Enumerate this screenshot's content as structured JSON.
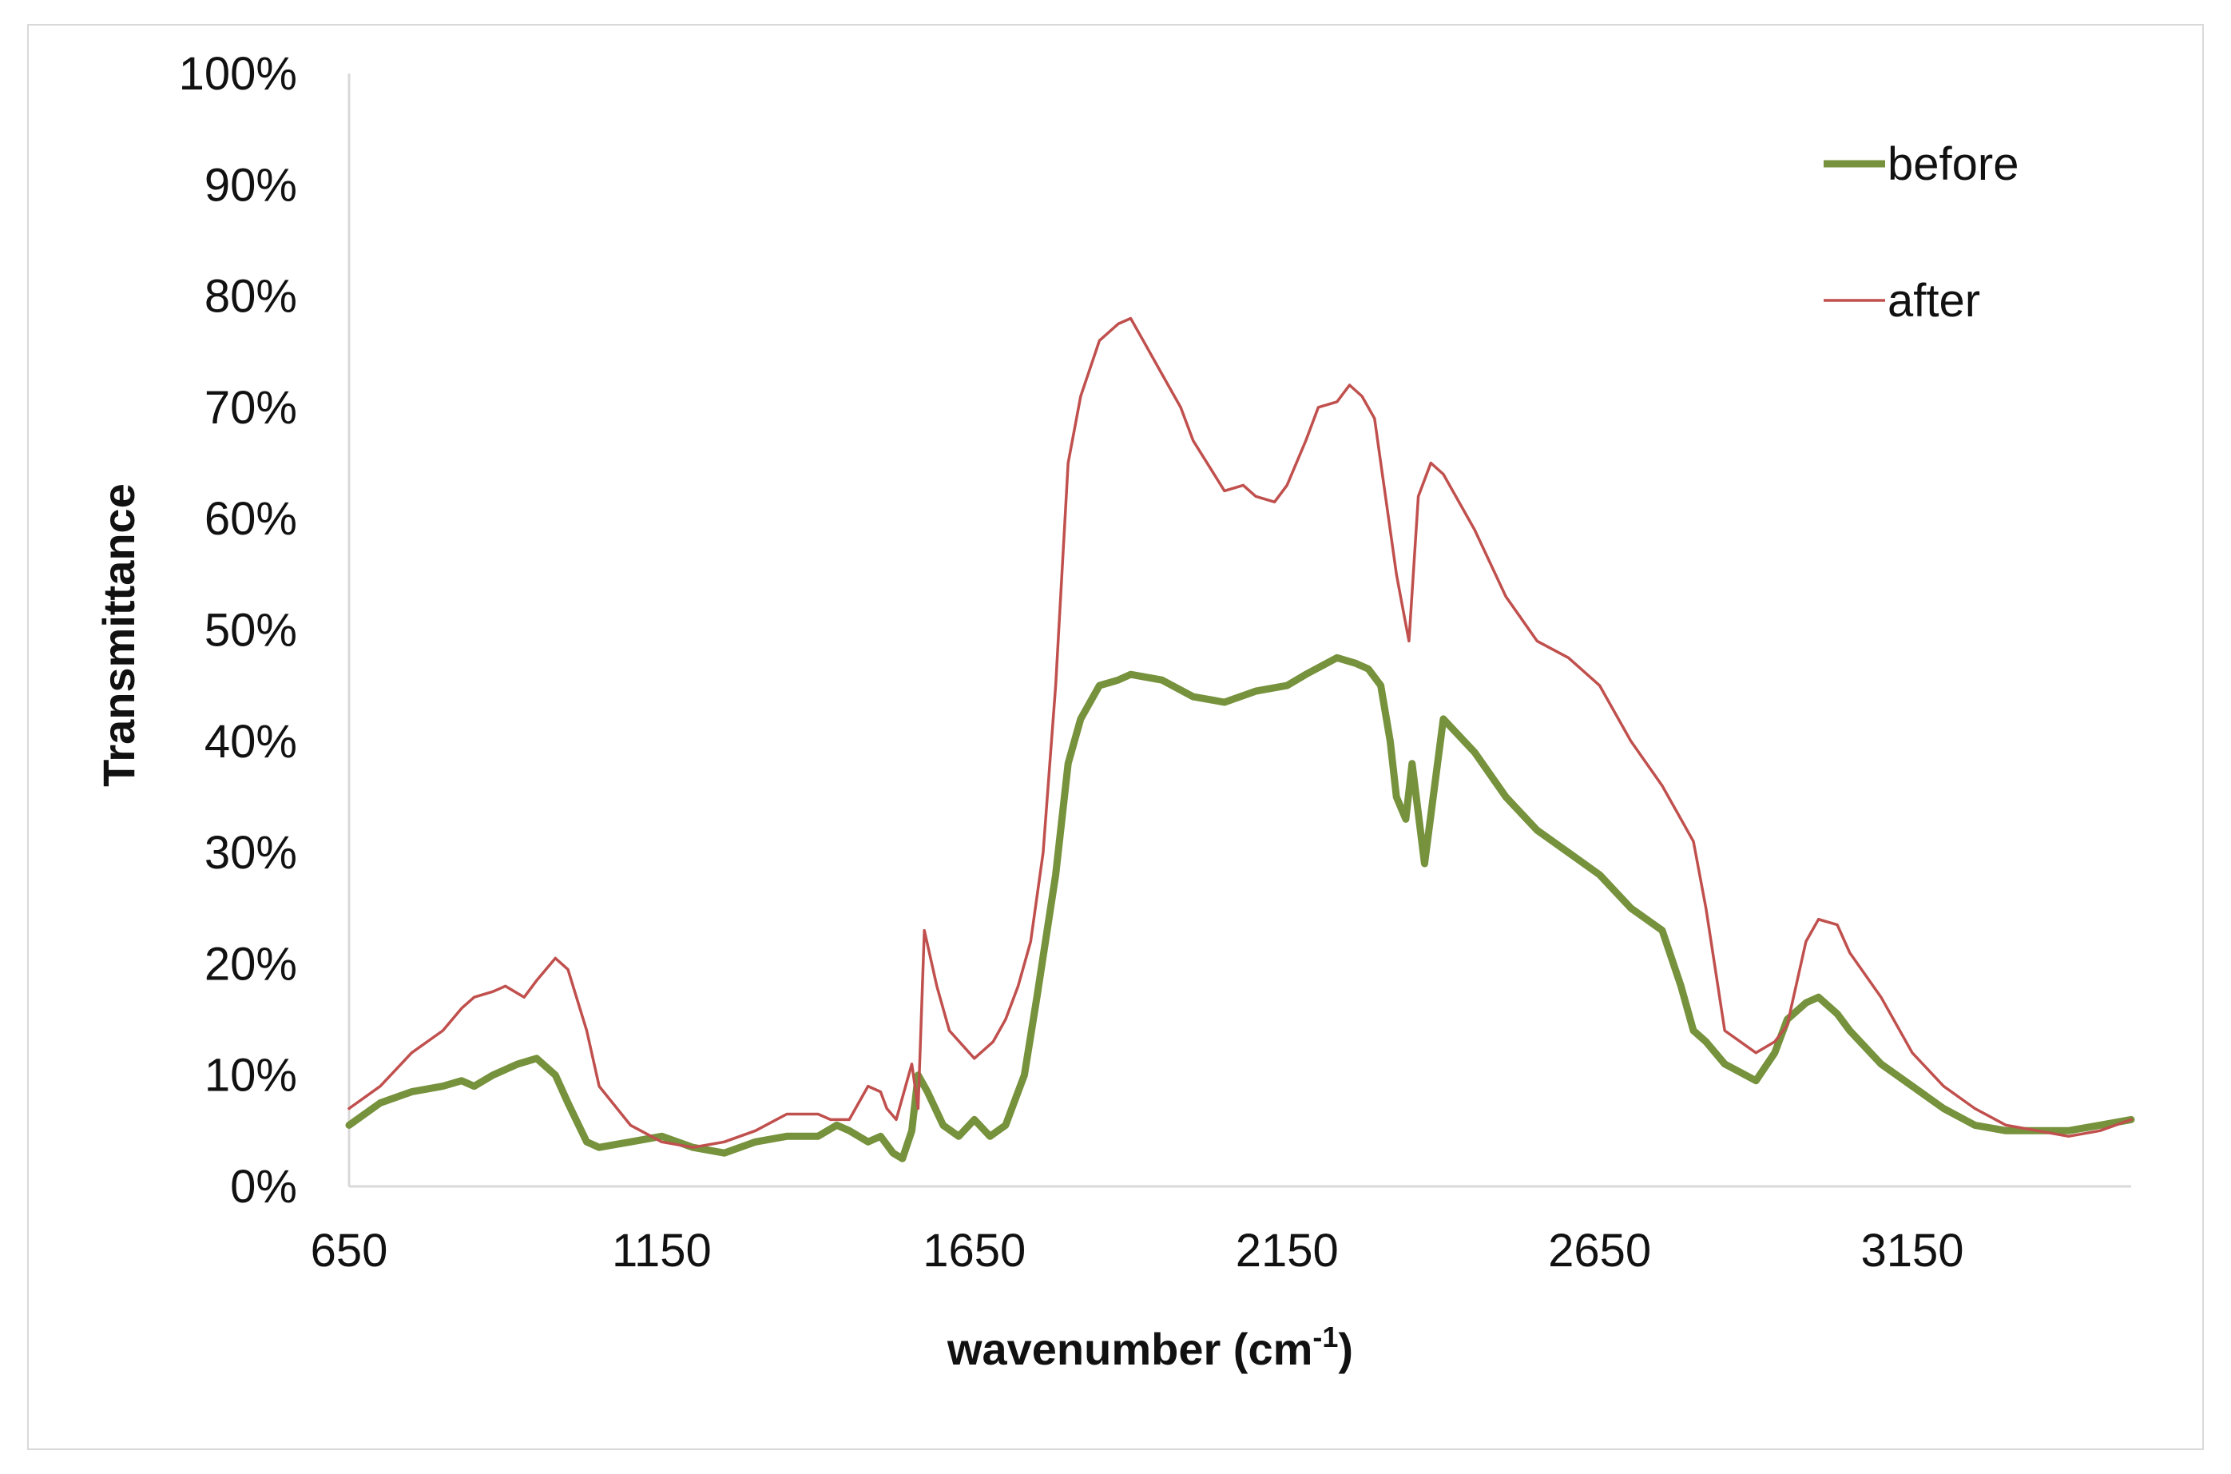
{
  "chart_data": {
    "type": "line",
    "xlabel": "wavenumber (cm",
    "xlabel_sup": "-1",
    "xlabel_end": ")",
    "ylabel": "Transmittance",
    "xlim": [
      650,
      3500
    ],
    "ylim": [
      0,
      100
    ],
    "x_ticks": [
      650,
      1150,
      1650,
      2150,
      2650,
      3150
    ],
    "y_ticks": [
      "0%",
      "10%",
      "20%",
      "30%",
      "40%",
      "50%",
      "60%",
      "70%",
      "80%",
      "90%",
      "100%"
    ],
    "grid": false,
    "legend_position": "top-right",
    "series": [
      {
        "name": "before",
        "color": "#76923c",
        "line_style": "thick",
        "x": [
          650,
          700,
          750,
          800,
          830,
          850,
          880,
          920,
          950,
          980,
          1000,
          1030,
          1050,
          1100,
          1150,
          1200,
          1250,
          1300,
          1350,
          1400,
          1430,
          1450,
          1480,
          1500,
          1520,
          1535,
          1550,
          1560,
          1575,
          1600,
          1625,
          1650,
          1675,
          1700,
          1730,
          1750,
          1780,
          1800,
          1820,
          1850,
          1880,
          1900,
          1950,
          2000,
          2050,
          2100,
          2150,
          2180,
          2230,
          2260,
          2280,
          2300,
          2315,
          2325,
          2340,
          2350,
          2370,
          2400,
          2450,
          2500,
          2550,
          2600,
          2650,
          2700,
          2750,
          2780,
          2800,
          2820,
          2850,
          2900,
          2930,
          2950,
          2980,
          3000,
          3030,
          3050,
          3100,
          3150,
          3200,
          3250,
          3300,
          3350,
          3400,
          3450,
          3500
        ],
        "y": [
          5.5,
          7.5,
          8.5,
          9,
          9.5,
          9,
          10,
          11,
          11.5,
          10,
          7.5,
          4,
          3.5,
          4,
          4.5,
          3.5,
          3,
          4,
          4.5,
          4.5,
          5.5,
          5,
          4,
          4.5,
          3,
          2.5,
          5,
          10,
          8.5,
          5.5,
          4.5,
          6,
          4.5,
          5.5,
          10,
          17,
          28,
          38,
          42,
          45,
          45.5,
          46,
          45.5,
          44,
          43.5,
          44.5,
          45,
          46,
          47.5,
          47,
          46.5,
          45,
          40,
          35,
          33,
          38,
          29,
          42,
          39,
          35,
          32,
          30,
          28,
          25,
          23,
          18,
          14,
          13,
          11,
          9.5,
          12,
          15,
          16.5,
          17,
          15.5,
          14,
          11,
          9,
          7,
          5.5,
          5,
          5,
          5,
          5.5,
          6
        ]
      },
      {
        "name": "after",
        "color": "#c0504d",
        "line_style": "thin",
        "x": [
          650,
          700,
          750,
          800,
          830,
          850,
          880,
          900,
          930,
          950,
          980,
          1000,
          1030,
          1050,
          1100,
          1150,
          1200,
          1250,
          1300,
          1350,
          1400,
          1420,
          1450,
          1480,
          1500,
          1510,
          1525,
          1540,
          1550,
          1560,
          1570,
          1590,
          1610,
          1650,
          1680,
          1700,
          1720,
          1740,
          1760,
          1780,
          1800,
          1820,
          1850,
          1880,
          1900,
          1920,
          1950,
          1980,
          2000,
          2050,
          2080,
          2100,
          2130,
          2150,
          2180,
          2200,
          2230,
          2250,
          2270,
          2290,
          2300,
          2315,
          2325,
          2335,
          2345,
          2360,
          2380,
          2400,
          2450,
          2500,
          2550,
          2600,
          2650,
          2700,
          2750,
          2780,
          2800,
          2820,
          2850,
          2900,
          2930,
          2950,
          2980,
          3000,
          3030,
          3050,
          3100,
          3150,
          3200,
          3250,
          3300,
          3350,
          3400,
          3450,
          3500
        ],
        "y": [
          7,
          9,
          12,
          14,
          16,
          17,
          17.5,
          18,
          17,
          18.5,
          20.5,
          19.5,
          14,
          9,
          5.5,
          4,
          3.5,
          4,
          5,
          6.5,
          6.5,
          6,
          6,
          9,
          8.5,
          7,
          6,
          9,
          11,
          7,
          23,
          18,
          14,
          11.5,
          13,
          15,
          18,
          22,
          30,
          45,
          65,
          71,
          76,
          77.5,
          78,
          76,
          73,
          70,
          67,
          62.5,
          63,
          62,
          61.5,
          63,
          67,
          70,
          70.5,
          72,
          71,
          69,
          65,
          59,
          55,
          52,
          49,
          62,
          65,
          64,
          59,
          53,
          49,
          47.5,
          45,
          40,
          36,
          33,
          31,
          25,
          14,
          12,
          13,
          14.5,
          22,
          24,
          23.5,
          21,
          17,
          12,
          9,
          7,
          5.5,
          5,
          4.5,
          5,
          6
        ]
      }
    ]
  }
}
